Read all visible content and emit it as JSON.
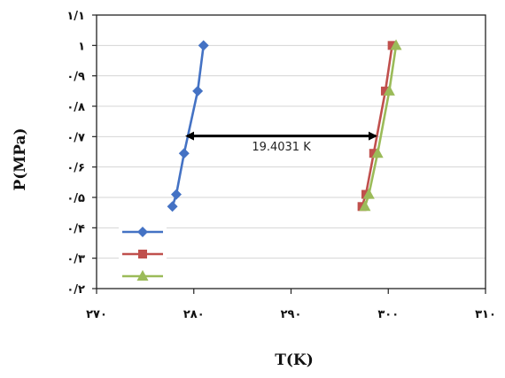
{
  "chart_data": {
    "type": "scatter",
    "xlabel": "T(K)",
    "ylabel": "P(MPa)",
    "xlim": [
      270,
      310
    ],
    "ylim": [
      0.2,
      1.1
    ],
    "x_ticks": [
      270,
      280,
      290,
      300,
      310
    ],
    "y_ticks": [
      0.2,
      0.3,
      0.4,
      0.5,
      0.6,
      0.7,
      0.8,
      0.9,
      1.0,
      1.1
    ],
    "x_tick_labels": [
      "۲۷۰",
      "۲۸۰",
      "۲۹۰",
      "۳۰۰",
      "۳۱۰"
    ],
    "y_tick_labels": [
      "۰/۲",
      "۰/۳",
      "۰/۴",
      "۰/۵",
      "۰/۶",
      "۰/۷",
      "۰/۸",
      "۰/۹",
      "۱",
      "۱/۱"
    ],
    "grid": "horizontal",
    "legend_placement": "lower-left",
    "series": [
      {
        "color": "#4472c4",
        "marker": "diamond",
        "x": [
          277.8,
          278.2,
          279.0,
          280.4,
          281.0
        ],
        "y": [
          0.47,
          0.51,
          0.645,
          0.85,
          1.0
        ]
      },
      {
        "color": "#c0504d",
        "marker": "square",
        "x": [
          297.3,
          297.7,
          298.5,
          299.7,
          300.4
        ],
        "y": [
          0.47,
          0.51,
          0.645,
          0.85,
          1.0
        ]
      },
      {
        "color": "#9bbb59",
        "marker": "triangle",
        "x": [
          297.6,
          298.0,
          298.9,
          300.1,
          300.8
        ],
        "y": [
          0.47,
          0.51,
          0.645,
          0.85,
          1.0
        ]
      }
    ],
    "annotations": [
      {
        "text": "19.4031 K",
        "type": "double-arrow",
        "x_start": 279.3,
        "x_end": 298.7,
        "y": 0.702,
        "label_x": 289.0,
        "label_y": 0.655
      }
    ]
  }
}
